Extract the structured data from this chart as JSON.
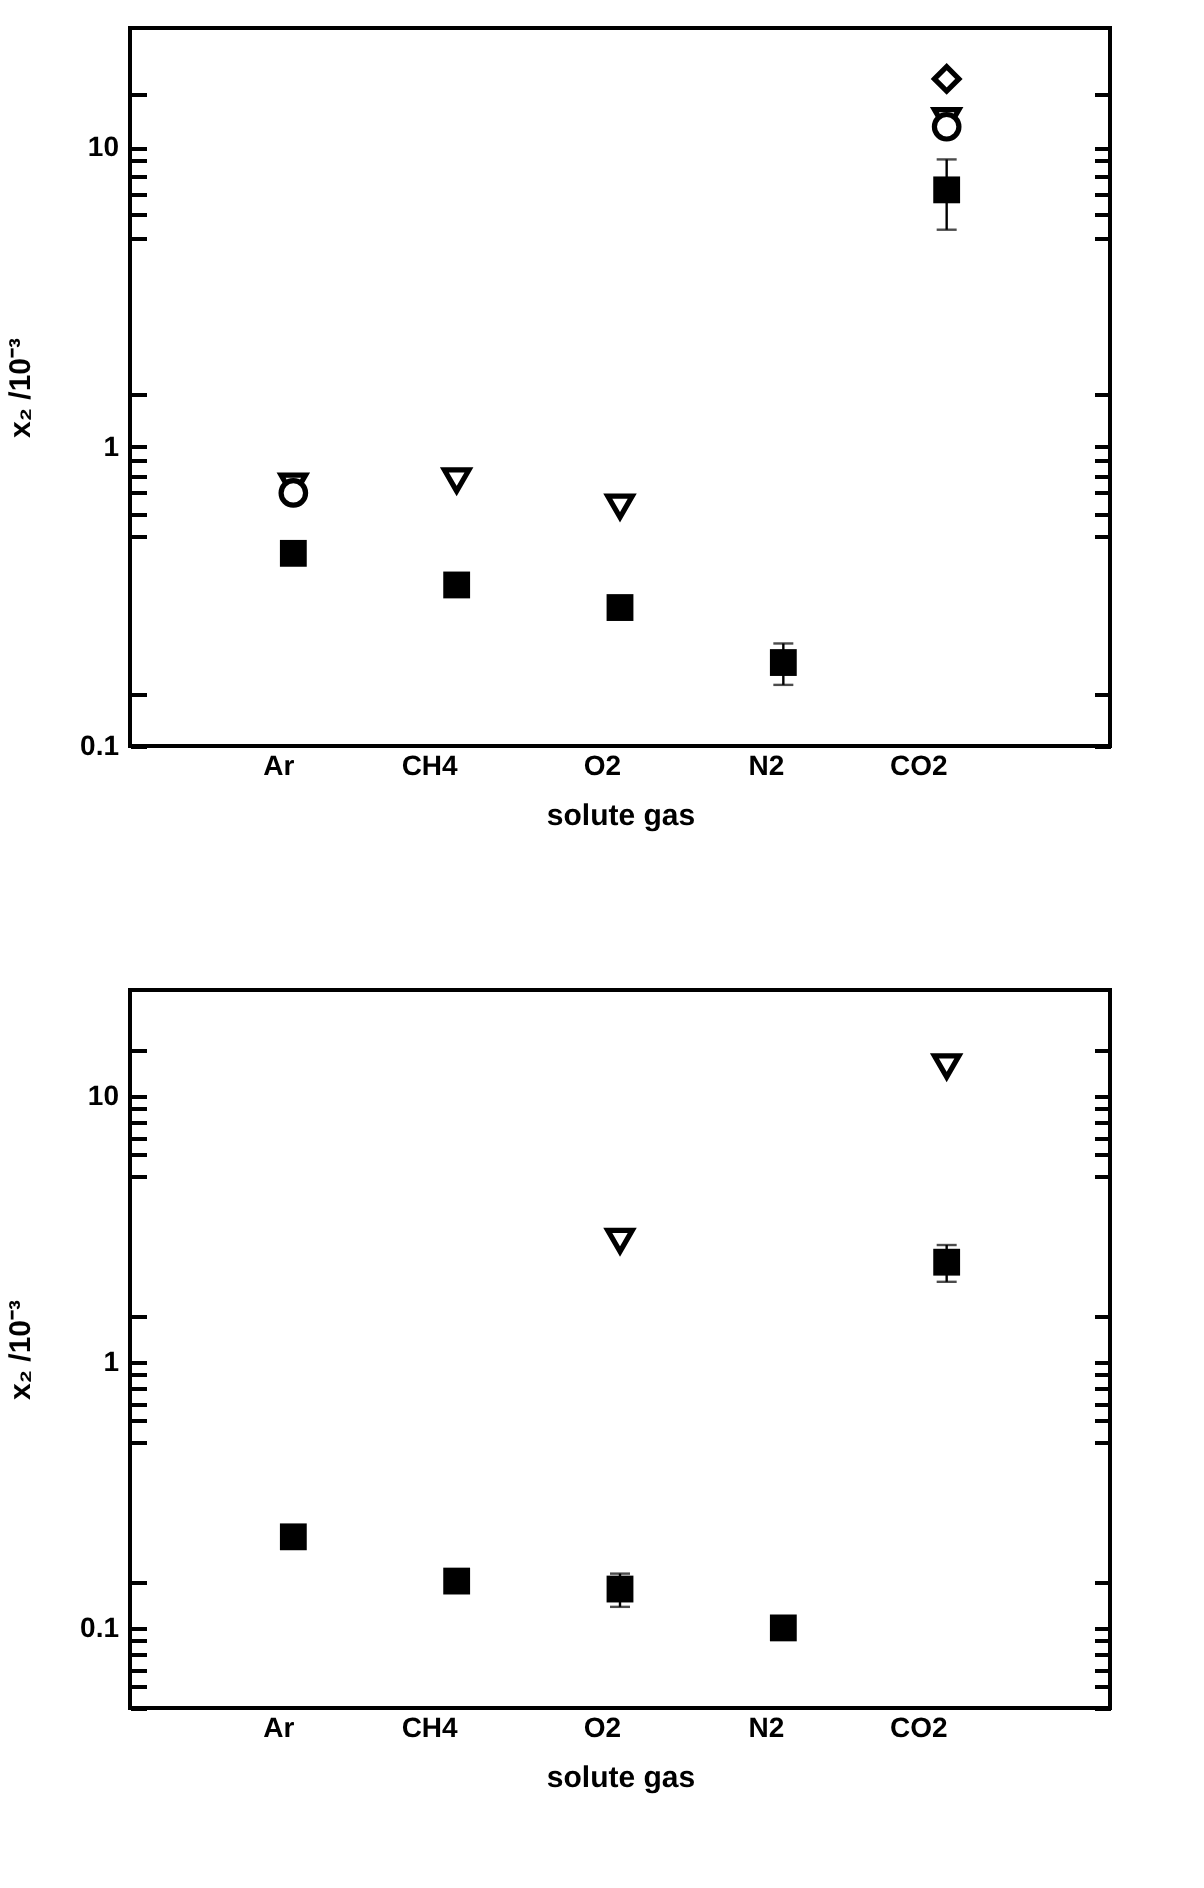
{
  "chart_data": [
    {
      "type": "scatter",
      "xlabel": "solute gas",
      "ylabel": "x₂ /10⁻³",
      "categories": [
        "Ar",
        "CH4",
        "O2",
        "N2",
        "CO2"
      ],
      "log": true,
      "ylim": [
        0.1,
        25
      ],
      "yticks": [
        0.1,
        {
          "value": 0.15,
          "label": null
        },
        {
          "value": 0.5,
          "label": null
        },
        {
          "value": 0.6,
          "label": null
        },
        {
          "value": 0.7,
          "label": null
        },
        {
          "value": 0.8,
          "label": null
        },
        {
          "value": 0.9,
          "label": null
        },
        1,
        {
          "value": 1.5,
          "label": null
        },
        {
          "value": 5,
          "label": null
        },
        {
          "value": 6,
          "label": null
        },
        {
          "value": 7,
          "label": null
        },
        {
          "value": 8,
          "label": null
        },
        {
          "value": 9,
          "label": null
        },
        10,
        {
          "value": 15,
          "label": null
        }
      ],
      "series": [
        {
          "color": "#000000",
          "marker": "square",
          "values": [
            0.44,
            0.345,
            0.29,
            0.19,
            7.2
          ],
          "errors": [
            null,
            [
              0.32,
              0.37
            ],
            null,
            [
              0.16,
              0.22
            ],
            [
              5.3,
              9.1
            ]
          ]
        },
        {
          "color": "#000000",
          "marker": "triangle",
          "values": [
            0.74,
            0.77,
            0.63,
            null,
            12.3
          ]
        },
        {
          "color": "#000000",
          "marker": "circle",
          "values": [
            0.7,
            null,
            null,
            null,
            11.7
          ]
        },
        {
          "color": "#000000",
          "marker": "diamond",
          "values": [
            null,
            null,
            null,
            null,
            16.9
          ]
        }
      ]
    },
    {
      "type": "scatter",
      "xlabel": "solute gas",
      "ylabel": "x₂ /10⁻³",
      "categories": [
        "Ar",
        "CH4",
        "O2",
        "N2",
        "CO2"
      ],
      "log": true,
      "ylim": [
        0.05,
        25
      ],
      "yticks": [
        {
          "value": 0.05,
          "label": null
        },
        {
          "value": 0.06,
          "label": null
        },
        {
          "value": 0.07,
          "label": null
        },
        {
          "value": 0.08,
          "label": null
        },
        {
          "value": 0.09,
          "label": null
        },
        0.1,
        {
          "value": 0.15,
          "label": null
        },
        {
          "value": 0.5,
          "label": null
        },
        {
          "value": 0.6,
          "label": null
        },
        {
          "value": 0.7,
          "label": null
        },
        {
          "value": 0.8,
          "label": null
        },
        {
          "value": 0.9,
          "label": null
        },
        1,
        {
          "value": 1.5,
          "label": null
        },
        {
          "value": 5,
          "label": null
        },
        {
          "value": 6,
          "label": null
        },
        {
          "value": 7,
          "label": null
        },
        {
          "value": 8,
          "label": null
        },
        {
          "value": 9,
          "label": null
        },
        10,
        {
          "value": 15,
          "label": null
        }
      ],
      "series": [
        {
          "color": "#000000",
          "marker": "square",
          "values": [
            0.22,
            0.15,
            0.14,
            0.1,
            2.37
          ],
          "errors": [
            null,
            [
              0.14,
              0.16
            ],
            [
              0.12,
              0.16
            ],
            null,
            [
              2.0,
              2.75
            ]
          ]
        },
        {
          "color": "#000000",
          "marker": "triangle",
          "values": [
            null,
            null,
            2.85,
            null,
            12.9
          ]
        }
      ]
    }
  ]
}
